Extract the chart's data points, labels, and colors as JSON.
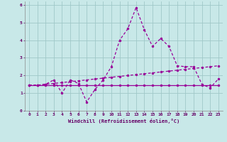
{
  "bg_color": "#c8e8e8",
  "grid_color": "#a0c8c8",
  "line_color": "#990099",
  "xlabel": "Windchill (Refroidissement éolien,°C)",
  "xlim": [
    -0.5,
    23.5
  ],
  "ylim": [
    0,
    6.2
  ],
  "xticks": [
    0,
    1,
    2,
    3,
    4,
    5,
    6,
    7,
    8,
    9,
    10,
    11,
    12,
    13,
    14,
    15,
    16,
    17,
    18,
    19,
    20,
    21,
    22,
    23
  ],
  "yticks": [
    0,
    1,
    2,
    3,
    4,
    5,
    6
  ],
  "line1_x": [
    0,
    1,
    2,
    3,
    4,
    5,
    6,
    7,
    8,
    9,
    10,
    11,
    12,
    13,
    14,
    15,
    16,
    17,
    18,
    19,
    20,
    21,
    22,
    23
  ],
  "line1_y": [
    1.45,
    1.45,
    1.5,
    1.55,
    1.6,
    1.65,
    1.7,
    1.75,
    1.8,
    1.85,
    1.9,
    1.95,
    2.0,
    2.05,
    2.1,
    2.15,
    2.2,
    2.25,
    2.3,
    2.35,
    2.4,
    2.45,
    2.5,
    2.55
  ],
  "line2_x": [
    0,
    1,
    2,
    3,
    4,
    5,
    6,
    7,
    8,
    9,
    10,
    11,
    12,
    13,
    14,
    15,
    16,
    17,
    18,
    19,
    20,
    21,
    22,
    23
  ],
  "line2_y": [
    1.45,
    1.45,
    1.45,
    1.45,
    1.45,
    1.45,
    1.45,
    1.45,
    1.45,
    1.45,
    1.45,
    1.45,
    1.45,
    1.45,
    1.45,
    1.45,
    1.45,
    1.45,
    1.45,
    1.45,
    1.45,
    1.45,
    1.45,
    1.45
  ],
  "line3_x": [
    0,
    1,
    2,
    3,
    4,
    5,
    6,
    7,
    8,
    9,
    10,
    11,
    12,
    13,
    14,
    15,
    16,
    17,
    18,
    19,
    20,
    21,
    22,
    23
  ],
  "line3_y": [
    1.45,
    1.45,
    1.5,
    1.75,
    1.0,
    1.75,
    1.55,
    0.5,
    1.2,
    1.75,
    2.5,
    4.0,
    4.65,
    5.85,
    4.6,
    3.65,
    4.1,
    3.65,
    2.55,
    2.5,
    2.5,
    1.5,
    1.3,
    1.8
  ],
  "marker": "o",
  "markersize": 2.5,
  "linewidth": 0.9
}
